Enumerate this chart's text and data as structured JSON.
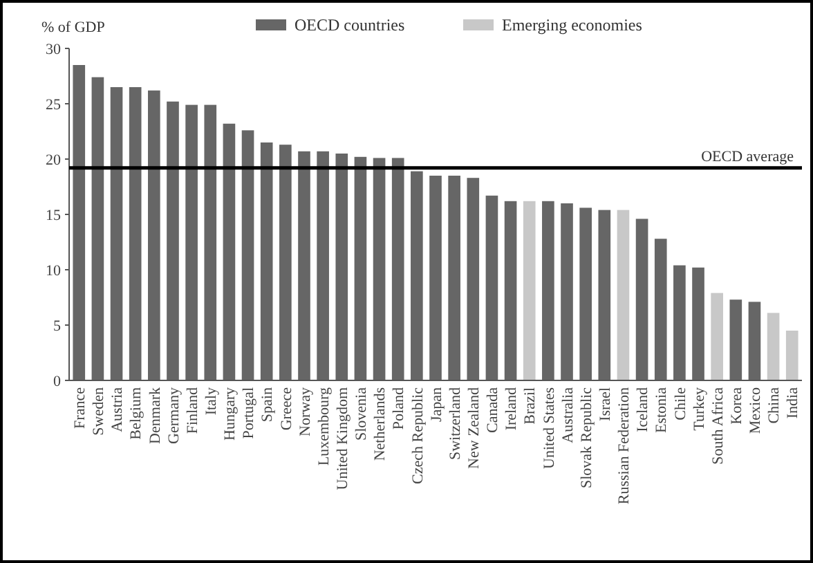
{
  "chart_data": {
    "type": "bar",
    "ylabel": "% of GDP",
    "categories": [
      "France",
      "Sweden",
      "Austria",
      "Belgium",
      "Denmark",
      "Germany",
      "Finland",
      "Italy",
      "Hungary",
      "Portugal",
      "Spain",
      "Greece",
      "Norway",
      "Luxembourg",
      "United Kingdom",
      "Slovenia",
      "Netherlands",
      "Poland",
      "Czech Republic",
      "Japan",
      "Switzerland",
      "New Zealand",
      "Canada",
      "Ireland",
      "Brazil",
      "United States",
      "Australia",
      "Slovak Republic",
      "Israel",
      "Russian Federation",
      "Iceland",
      "Estonia",
      "Chile",
      "Turkey",
      "South Africa",
      "Korea",
      "Mexico",
      "China",
      "India"
    ],
    "series": [
      {
        "name": "OECD countries",
        "color": "#666666",
        "values": [
          28.5,
          27.4,
          26.5,
          26.5,
          26.2,
          25.2,
          24.9,
          24.9,
          23.2,
          22.6,
          21.5,
          21.3,
          20.7,
          20.7,
          20.5,
          20.2,
          20.1,
          20.1,
          18.9,
          18.5,
          18.5,
          18.3,
          16.7,
          16.2,
          null,
          16.2,
          16.0,
          15.6,
          15.4,
          null,
          14.6,
          12.8,
          10.4,
          10.2,
          null,
          7.3,
          7.1,
          null,
          null
        ]
      },
      {
        "name": "Emerging economies",
        "color": "#c8c8c8",
        "values": [
          null,
          null,
          null,
          null,
          null,
          null,
          null,
          null,
          null,
          null,
          null,
          null,
          null,
          null,
          null,
          null,
          null,
          null,
          null,
          null,
          null,
          null,
          null,
          null,
          16.2,
          null,
          null,
          null,
          null,
          15.4,
          null,
          null,
          null,
          null,
          7.9,
          null,
          null,
          6.1,
          4.5
        ]
      }
    ],
    "ylim": [
      0,
      30
    ],
    "yticks": [
      0,
      5,
      10,
      15,
      20,
      25,
      30
    ],
    "grid": false,
    "legend": "top",
    "ref_lines": [
      {
        "axis": "y",
        "value": 19.2,
        "label": "OECD average",
        "color": "#000000"
      }
    ]
  }
}
